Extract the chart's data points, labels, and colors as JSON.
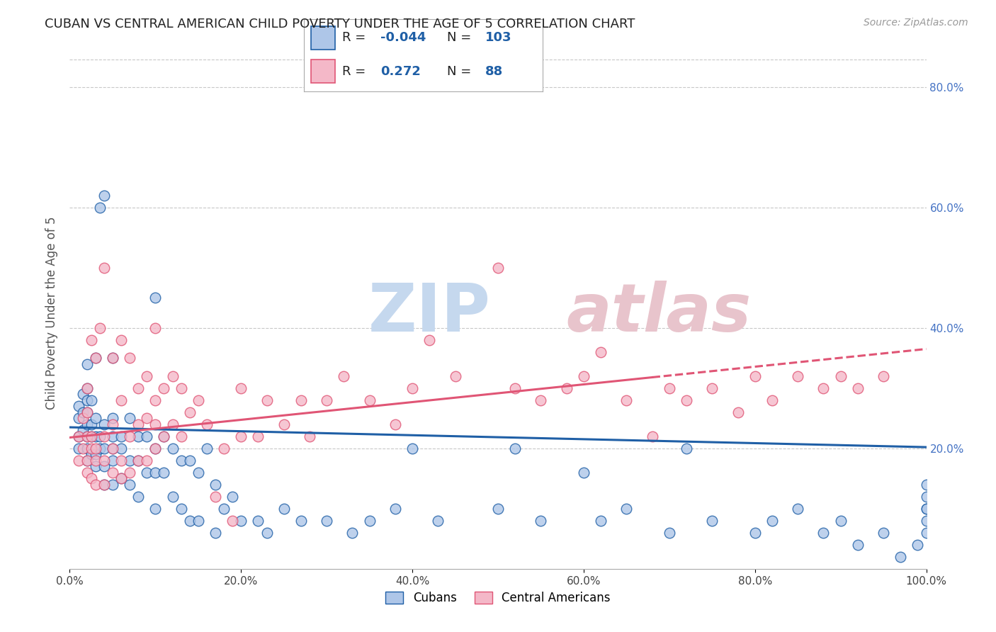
{
  "title": "CUBAN VS CENTRAL AMERICAN CHILD POVERTY UNDER THE AGE OF 5 CORRELATION CHART",
  "source": "Source: ZipAtlas.com",
  "ylabel": "Child Poverty Under the Age of 5",
  "xlim": [
    0,
    1.0
  ],
  "ylim": [
    0,
    0.85
  ],
  "xticks": [
    0.0,
    0.2,
    0.4,
    0.6,
    0.8,
    1.0
  ],
  "xtick_labels": [
    "0.0%",
    "20.0%",
    "40.0%",
    "60.0%",
    "80.0%",
    "100.0%"
  ],
  "ytick_labels_right": [
    "20.0%",
    "40.0%",
    "60.0%",
    "80.0%"
  ],
  "yticks_right": [
    0.2,
    0.4,
    0.6,
    0.8
  ],
  "legend_R_cubans": "-0.044",
  "legend_N_cubans": "103",
  "legend_R_central": "0.272",
  "legend_N_central": "88",
  "color_cubans": "#aec6e8",
  "color_central": "#f4b8c8",
  "line_color_cubans": "#1f5fa6",
  "line_color_central": "#e05575",
  "background_color": "#ffffff",
  "grid_color": "#c8c8c8",
  "title_color": "#222222",
  "axis_label_color": "#555555",
  "right_tick_color": "#4472c4",
  "cubans_line_y0": 0.235,
  "cubans_line_y1": 0.202,
  "central_line_y0": 0.218,
  "central_line_y1": 0.365,
  "central_line_solid_end": 0.68,
  "cubans_x": [
    0.01,
    0.01,
    0.01,
    0.01,
    0.015,
    0.015,
    0.015,
    0.02,
    0.02,
    0.02,
    0.02,
    0.02,
    0.02,
    0.02,
    0.02,
    0.025,
    0.025,
    0.025,
    0.025,
    0.03,
    0.03,
    0.03,
    0.03,
    0.03,
    0.035,
    0.035,
    0.035,
    0.04,
    0.04,
    0.04,
    0.04,
    0.04,
    0.05,
    0.05,
    0.05,
    0.05,
    0.05,
    0.05,
    0.06,
    0.06,
    0.06,
    0.07,
    0.07,
    0.07,
    0.08,
    0.08,
    0.08,
    0.09,
    0.09,
    0.1,
    0.1,
    0.1,
    0.1,
    0.11,
    0.11,
    0.12,
    0.12,
    0.13,
    0.13,
    0.14,
    0.14,
    0.15,
    0.15,
    0.16,
    0.17,
    0.17,
    0.18,
    0.19,
    0.2,
    0.22,
    0.23,
    0.25,
    0.27,
    0.3,
    0.33,
    0.35,
    0.38,
    0.4,
    0.43,
    0.5,
    0.52,
    0.55,
    0.6,
    0.62,
    0.65,
    0.7,
    0.72,
    0.75,
    0.8,
    0.82,
    0.85,
    0.88,
    0.9,
    0.92,
    0.95,
    0.97,
    0.99,
    1.0,
    1.0,
    1.0,
    1.0,
    1.0,
    1.0
  ],
  "cubans_y": [
    0.2,
    0.22,
    0.25,
    0.27,
    0.23,
    0.26,
    0.29,
    0.18,
    0.2,
    0.22,
    0.24,
    0.26,
    0.28,
    0.3,
    0.34,
    0.19,
    0.22,
    0.24,
    0.28,
    0.17,
    0.19,
    0.22,
    0.25,
    0.35,
    0.2,
    0.22,
    0.6,
    0.14,
    0.17,
    0.2,
    0.24,
    0.62,
    0.14,
    0.18,
    0.2,
    0.22,
    0.25,
    0.35,
    0.15,
    0.2,
    0.22,
    0.14,
    0.18,
    0.25,
    0.12,
    0.18,
    0.22,
    0.16,
    0.22,
    0.1,
    0.16,
    0.2,
    0.45,
    0.16,
    0.22,
    0.12,
    0.2,
    0.1,
    0.18,
    0.08,
    0.18,
    0.08,
    0.16,
    0.2,
    0.06,
    0.14,
    0.1,
    0.12,
    0.08,
    0.08,
    0.06,
    0.1,
    0.08,
    0.08,
    0.06,
    0.08,
    0.1,
    0.2,
    0.08,
    0.1,
    0.2,
    0.08,
    0.16,
    0.08,
    0.1,
    0.06,
    0.2,
    0.08,
    0.06,
    0.08,
    0.1,
    0.06,
    0.08,
    0.04,
    0.06,
    0.02,
    0.04,
    0.06,
    0.08,
    0.1,
    0.12,
    0.14,
    0.1
  ],
  "central_x": [
    0.01,
    0.01,
    0.015,
    0.015,
    0.02,
    0.02,
    0.02,
    0.02,
    0.02,
    0.025,
    0.025,
    0.025,
    0.025,
    0.03,
    0.03,
    0.03,
    0.03,
    0.035,
    0.04,
    0.04,
    0.04,
    0.04,
    0.05,
    0.05,
    0.05,
    0.05,
    0.06,
    0.06,
    0.06,
    0.06,
    0.07,
    0.07,
    0.07,
    0.08,
    0.08,
    0.08,
    0.09,
    0.09,
    0.09,
    0.1,
    0.1,
    0.1,
    0.1,
    0.11,
    0.11,
    0.12,
    0.12,
    0.13,
    0.13,
    0.14,
    0.15,
    0.16,
    0.17,
    0.18,
    0.19,
    0.2,
    0.2,
    0.22,
    0.23,
    0.25,
    0.27,
    0.28,
    0.3,
    0.32,
    0.35,
    0.38,
    0.4,
    0.42,
    0.45,
    0.5,
    0.52,
    0.55,
    0.58,
    0.6,
    0.62,
    0.65,
    0.68,
    0.7,
    0.72,
    0.75,
    0.78,
    0.8,
    0.82,
    0.85,
    0.88,
    0.9,
    0.92,
    0.95
  ],
  "central_y": [
    0.18,
    0.22,
    0.2,
    0.25,
    0.16,
    0.18,
    0.22,
    0.26,
    0.3,
    0.15,
    0.2,
    0.22,
    0.38,
    0.14,
    0.18,
    0.2,
    0.35,
    0.4,
    0.14,
    0.18,
    0.22,
    0.5,
    0.16,
    0.2,
    0.24,
    0.35,
    0.15,
    0.18,
    0.28,
    0.38,
    0.16,
    0.22,
    0.35,
    0.18,
    0.24,
    0.3,
    0.18,
    0.25,
    0.32,
    0.2,
    0.24,
    0.28,
    0.4,
    0.22,
    0.3,
    0.24,
    0.32,
    0.22,
    0.3,
    0.26,
    0.28,
    0.24,
    0.12,
    0.2,
    0.08,
    0.22,
    0.3,
    0.22,
    0.28,
    0.24,
    0.28,
    0.22,
    0.28,
    0.32,
    0.28,
    0.24,
    0.3,
    0.38,
    0.32,
    0.5,
    0.3,
    0.28,
    0.3,
    0.32,
    0.36,
    0.28,
    0.22,
    0.3,
    0.28,
    0.3,
    0.26,
    0.32,
    0.28,
    0.32,
    0.3,
    0.32,
    0.3,
    0.32
  ]
}
